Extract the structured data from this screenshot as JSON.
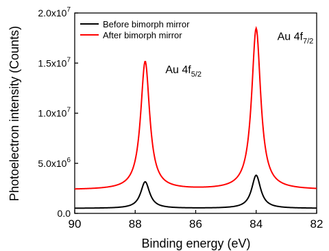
{
  "chart_data": {
    "type": "line",
    "title": "",
    "xlabel": "Binding energy (eV)",
    "ylabel": "Photoelectron intensity (Counts)",
    "xlim": [
      90,
      82
    ],
    "ylim": [
      0,
      20000000
    ],
    "x_reversed": true,
    "x_ticks": [
      "90",
      "88",
      "86",
      "84",
      "82"
    ],
    "y_ticks": [
      {
        "mantissa": "0.0",
        "exp": ""
      },
      {
        "mantissa": "5.0x10",
        "exp": "6"
      },
      {
        "mantissa": "1.0x10",
        "exp": "7"
      },
      {
        "mantissa": "1.5x10",
        "exp": "7"
      },
      {
        "mantissa": "2.0x10",
        "exp": "7"
      }
    ],
    "grid": false,
    "legend_position": "top-left",
    "series": [
      {
        "name": "Before bimorph mirror",
        "color": "#000000",
        "baseline": 500000,
        "peaks": [
          {
            "x": 87.67,
            "height": 2650000,
            "width": 0.18
          },
          {
            "x": 84.0,
            "height": 3300000,
            "width": 0.18
          }
        ]
      },
      {
        "name": "After bimorph mirror",
        "color": "#ff0000",
        "baseline": 2350000,
        "peaks": [
          {
            "x": 87.67,
            "height": 12800000,
            "width": 0.18
          },
          {
            "x": 84.0,
            "height": 16100000,
            "width": 0.18
          }
        ]
      }
    ],
    "annotations": [
      {
        "main": "Au 4f",
        "sub": "5/2",
        "x": 87.0,
        "y": 14000000
      },
      {
        "main": "Au 4f",
        "sub": "7/2",
        "x": 83.3,
        "y": 17300000
      }
    ]
  }
}
